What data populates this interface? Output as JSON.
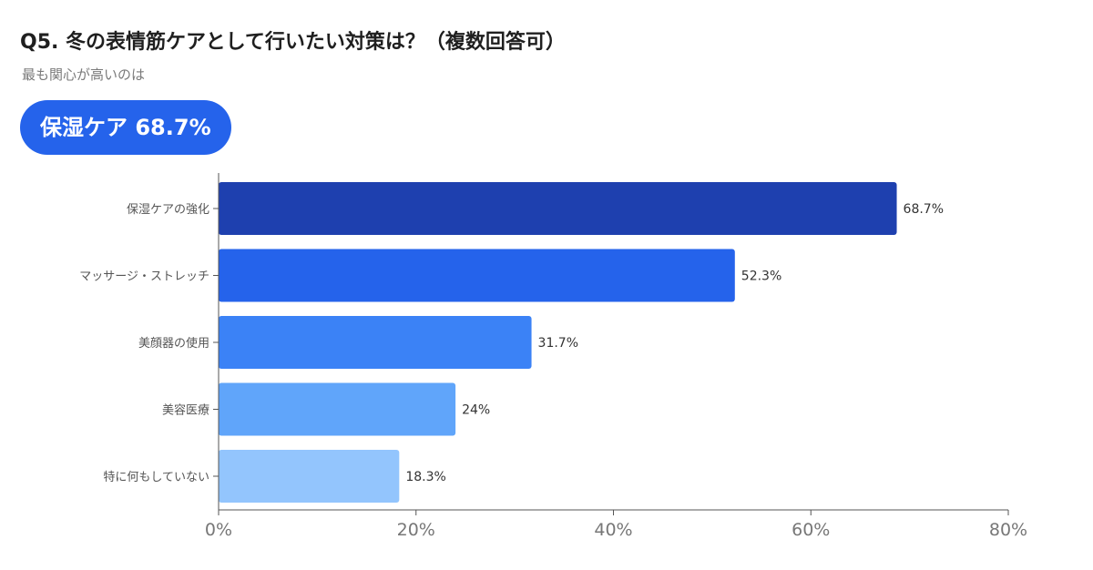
{
  "header": {
    "title": "Q5. 冬の表情筋ケアとして行いたい対策は？（複数回答可）",
    "subtitle": "最も関心が高いのは",
    "highlight": "保湿ケア 68.7%"
  },
  "chart_data": {
    "type": "bar",
    "orientation": "horizontal",
    "categories": [
      "保湿ケアの強化",
      "マッサージ・ストレッチ",
      "美顔器の使用",
      "美容医療",
      "特に何もしていない"
    ],
    "values": [
      68.7,
      52.3,
      31.7,
      24,
      18.3
    ],
    "value_labels": [
      "68.7%",
      "52.3%",
      "31.7%",
      "24%",
      "18.3%"
    ],
    "bar_colors": [
      "#1e40af",
      "#2563eb",
      "#3b82f6",
      "#60a5fa",
      "#93c5fd"
    ],
    "xlim": [
      0,
      80
    ],
    "xticks": [
      0,
      20,
      40,
      60,
      80
    ],
    "xtick_labels": [
      "0%",
      "20%",
      "40%",
      "60%",
      "80%"
    ],
    "grid": false
  },
  "colors": {
    "accent": "#2563eb"
  }
}
